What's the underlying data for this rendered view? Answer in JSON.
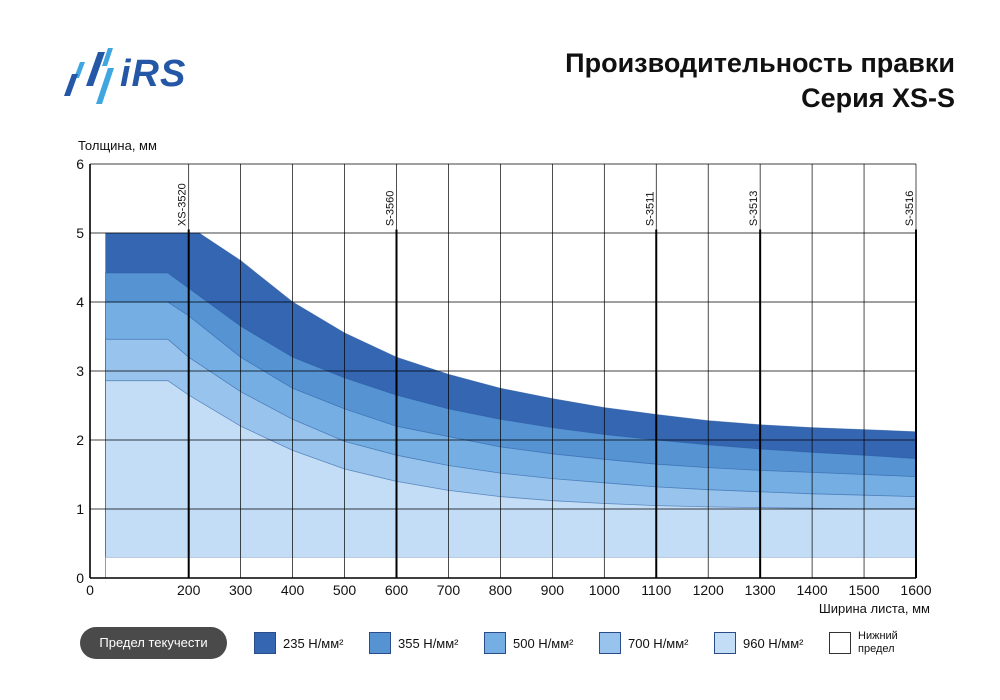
{
  "header": {
    "logo_text": "iRS",
    "title_line1": "Производительность правки",
    "title_line2": "Серия XS-S"
  },
  "colors": {
    "band_235": "#3566b2",
    "band_355": "#5693d3",
    "band_500": "#74aee3",
    "band_700": "#97c3ec",
    "band_960": "#c2ddf5",
    "grid": "#000000",
    "logo_dark": "#2457a6",
    "logo_light": "#3fa6e0"
  },
  "chart_data": {
    "type": "area",
    "ylabel": "Толщина, мм",
    "xlabel": "Ширина листа, мм",
    "xlim": [
      10,
      1600
    ],
    "ylim": [
      0,
      6
    ],
    "x_ticks": [
      0,
      200,
      300,
      400,
      500,
      600,
      700,
      800,
      900,
      1000,
      1100,
      1200,
      1300,
      1400,
      1500,
      1600
    ],
    "y_ticks": [
      0,
      1,
      2,
      3,
      4,
      5,
      6
    ],
    "grid": true,
    "machines": [
      {
        "name": "XS-3520",
        "x": 200
      },
      {
        "name": "S-3560",
        "x": 600
      },
      {
        "name": "S-3511",
        "x": 1100
      },
      {
        "name": "S-3513",
        "x": 1300
      },
      {
        "name": "S-3516",
        "x": 1600
      }
    ],
    "x_start": 40,
    "lower_limit": 0.3,
    "series": [
      {
        "name": "235 Н/мм²",
        "x": [
          40,
          220,
          300,
          400,
          500,
          600,
          700,
          800,
          900,
          1000,
          1100,
          1200,
          1300,
          1400,
          1500,
          1600
        ],
        "values": [
          5.0,
          5.0,
          4.6,
          4.0,
          3.55,
          3.2,
          2.95,
          2.75,
          2.6,
          2.47,
          2.37,
          2.28,
          2.22,
          2.18,
          2.15,
          2.12
        ]
      },
      {
        "name": "355 Н/мм²",
        "x": [
          40,
          160,
          200,
          300,
          400,
          500,
          600,
          700,
          800,
          900,
          1000,
          1100,
          1200,
          1300,
          1400,
          1500,
          1600
        ],
        "values": [
          4.42,
          4.42,
          4.2,
          3.65,
          3.2,
          2.9,
          2.65,
          2.45,
          2.3,
          2.18,
          2.08,
          2.0,
          1.93,
          1.87,
          1.82,
          1.78,
          1.73
        ]
      },
      {
        "name": "500 Н/мм²",
        "x": [
          40,
          160,
          200,
          300,
          400,
          500,
          600,
          700,
          800,
          900,
          1000,
          1100,
          1200,
          1300,
          1400,
          1500,
          1600
        ],
        "values": [
          4.0,
          4.0,
          3.8,
          3.2,
          2.75,
          2.45,
          2.2,
          2.05,
          1.9,
          1.8,
          1.72,
          1.65,
          1.6,
          1.56,
          1.53,
          1.5,
          1.47
        ]
      },
      {
        "name": "700 Н/мм²",
        "x": [
          40,
          160,
          200,
          300,
          400,
          500,
          600,
          700,
          800,
          900,
          1000,
          1100,
          1200,
          1300,
          1400,
          1500,
          1600
        ],
        "values": [
          3.46,
          3.46,
          3.2,
          2.7,
          2.3,
          1.98,
          1.78,
          1.63,
          1.52,
          1.44,
          1.38,
          1.32,
          1.28,
          1.25,
          1.22,
          1.2,
          1.18
        ]
      },
      {
        "name": "960 Н/мм²",
        "x": [
          40,
          160,
          200,
          300,
          400,
          500,
          600,
          700,
          800,
          900,
          1000,
          1100,
          1200,
          1300,
          1400,
          1500,
          1600
        ],
        "values": [
          2.86,
          2.86,
          2.65,
          2.2,
          1.85,
          1.58,
          1.4,
          1.27,
          1.18,
          1.12,
          1.08,
          1.05,
          1.03,
          1.02,
          1.01,
          1.0,
          1.0
        ]
      }
    ]
  },
  "legend": {
    "yield_label": "Предел текучести",
    "items": [
      "235 Н/мм²",
      "355 Н/мм²",
      "500 Н/мм²",
      "700 Н/мм²",
      "960 Н/мм²"
    ],
    "lower_limit_label": "Нижний предел"
  }
}
